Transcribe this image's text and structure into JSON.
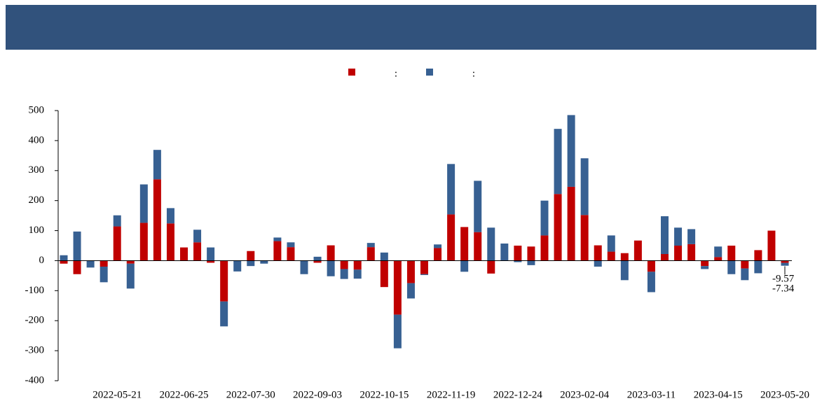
{
  "chart_data": {
    "type": "bar",
    "stacked": true,
    "categories": [
      null,
      null,
      null,
      null,
      "2022-05-21",
      null,
      null,
      null,
      null,
      "2022-06-25",
      null,
      null,
      null,
      null,
      "2022-07-30",
      null,
      null,
      null,
      null,
      "2022-09-03",
      null,
      null,
      null,
      null,
      "2022-10-15",
      null,
      null,
      null,
      null,
      "2022-11-19",
      null,
      null,
      null,
      null,
      "2022-12-24",
      null,
      null,
      null,
      null,
      "2023-02-04",
      null,
      null,
      null,
      null,
      "2023-03-11",
      null,
      null,
      null,
      null,
      "2023-04-15",
      null,
      null,
      null,
      null,
      "2023-05-20"
    ],
    "series": [
      {
        "name": ":",
        "color": "#c00000",
        "values": [
          -10,
          -45,
          0,
          -20,
          114,
          -10,
          126,
          271,
          124,
          44,
          61,
          -7,
          -136,
          0,
          32,
          0,
          65,
          45,
          0,
          -7,
          51,
          -28,
          -30,
          45,
          -88,
          -180,
          -75,
          -45,
          42,
          154,
          112,
          95,
          -43,
          0,
          50,
          47,
          84,
          222,
          246,
          152,
          51,
          30,
          25,
          67,
          -37,
          22,
          50,
          55,
          -18,
          12,
          50,
          -26,
          35,
          100,
          -7.34
        ]
      },
      {
        "name": ":",
        "color": "#376092",
        "values": [
          18,
          97,
          -23,
          -52,
          37,
          -83,
          128,
          98,
          51,
          0,
          42,
          44,
          -83,
          -36,
          -18,
          -10,
          12,
          16,
          -45,
          13,
          -52,
          -33,
          -30,
          14,
          27,
          -112,
          -51,
          -3,
          12,
          168,
          -37,
          171,
          110,
          57,
          -5,
          -15,
          116,
          217,
          239,
          189,
          -20,
          54,
          -65,
          0,
          -68,
          126,
          60,
          50,
          -10,
          35,
          -45,
          -39,
          -42,
          0,
          -9.57
        ]
      }
    ],
    "ylim": [
      -400,
      500
    ],
    "yticks": [
      -400,
      -300,
      -200,
      -100,
      0,
      100,
      200,
      300,
      400,
      500
    ],
    "legend": "top"
  }
}
